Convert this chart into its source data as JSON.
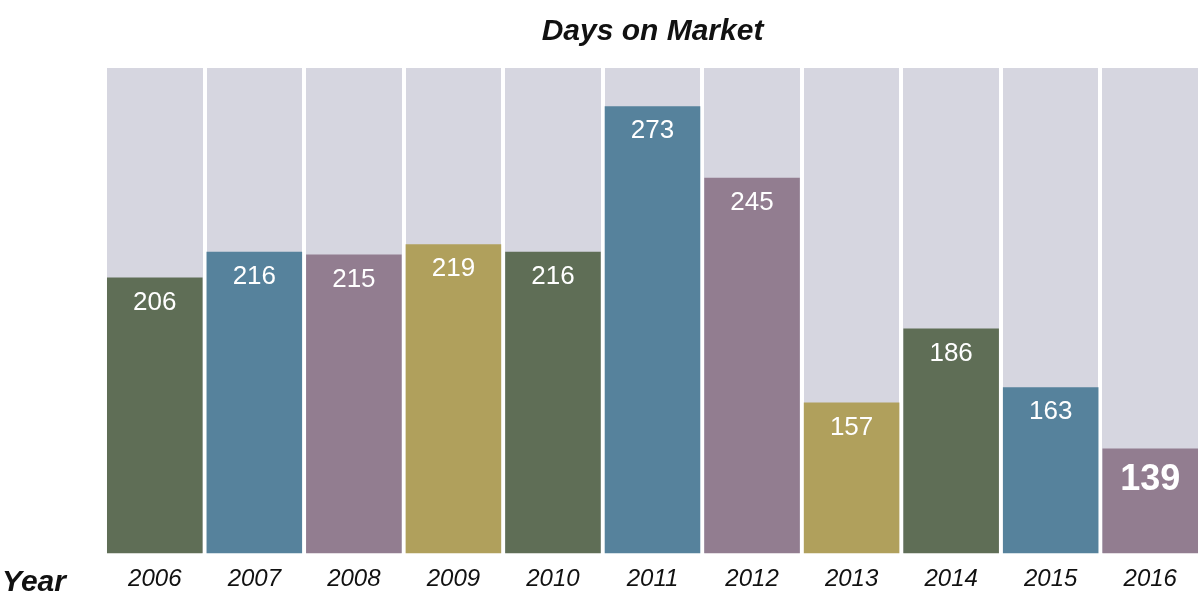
{
  "chart_data": {
    "type": "bar",
    "title": "Days on Market",
    "xlabel": "Year",
    "categories": [
      "2006",
      "2007",
      "2008",
      "2009",
      "2010",
      "2011",
      "2012",
      "2013",
      "2014",
      "2015",
      "2016"
    ],
    "values": [
      206,
      216,
      215,
      219,
      216,
      273,
      245,
      157,
      186,
      163,
      139
    ],
    "colors": [
      "#5f6e56",
      "#56829c",
      "#927d90",
      "#b0a05c",
      "#5f6e56",
      "#56829c",
      "#927d90",
      "#b0a05c",
      "#5f6e56",
      "#56829c",
      "#927d90"
    ],
    "ylim": [
      98,
      288
    ],
    "tick_labels": "x",
    "grid": false,
    "legend": false,
    "data_labels": true
  }
}
